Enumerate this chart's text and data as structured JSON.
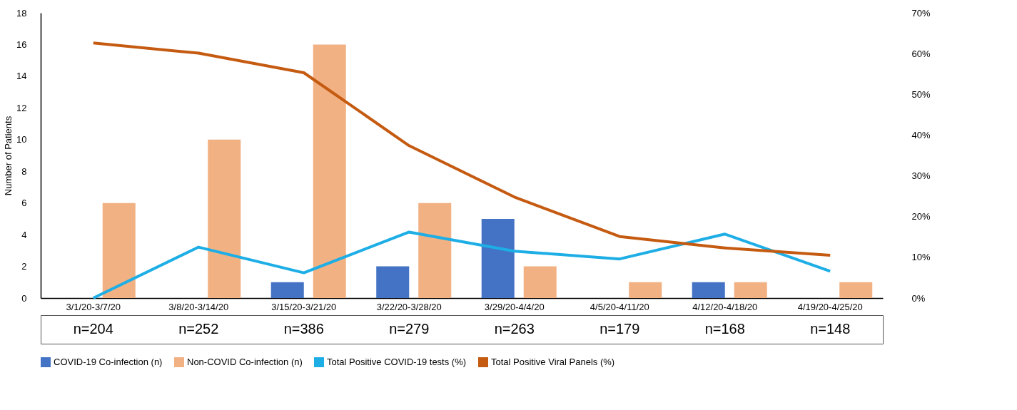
{
  "chart_data": {
    "type": "bar",
    "ylabel": "Number of Patients",
    "categories": [
      "3/1/20-3/7/20",
      "3/8/20-3/14/20",
      "3/15/20-3/21/20",
      "3/22/20-3/28/20",
      "3/29/20-4/4/20",
      "4/5/20-4/11/20",
      "4/12/20-4/18/20",
      "4/19/20-4/25/20"
    ],
    "series": [
      {
        "name": "COVID-19 Co-infection (n)",
        "color": "#4472c4",
        "values": [
          0,
          0,
          1,
          2,
          5,
          0,
          1,
          0
        ]
      },
      {
        "name": "Non-COVID Co-infection (n)",
        "color": "#f1b183",
        "values": [
          6,
          10,
          16,
          6,
          2,
          1,
          1,
          1
        ]
      },
      {
        "name": "Total Positive COVID-19 tests (%)",
        "type": "line",
        "axis": "y2",
        "color": "#1eaee6",
        "values": [
          0,
          12.5,
          6.2,
          16.2,
          11.5,
          9.6,
          15.7,
          6.6
        ]
      },
      {
        "name": "Total Positive Viral Panels (%)",
        "type": "line",
        "axis": "y2",
        "color": "#c55a11",
        "values": [
          62.6,
          60.1,
          55.3,
          37.4,
          24.8,
          15.1,
          12.3,
          10.5
        ]
      }
    ],
    "ylim": [
      0,
      18
    ],
    "yticks": [
      0,
      2,
      4,
      6,
      8,
      10,
      12,
      14,
      16,
      18
    ],
    "y2lim": [
      0,
      70
    ],
    "y2ticks": [
      {
        "value": 0,
        "label": "0%"
      },
      {
        "value": 10,
        "label": "10%"
      },
      {
        "value": 20,
        "label": "20%"
      },
      {
        "value": 30,
        "label": "30%"
      },
      {
        "value": 40,
        "label": "40%"
      },
      {
        "value": 50,
        "label": "50%"
      },
      {
        "value": 60,
        "label": "60%"
      },
      {
        "value": 70,
        "label": "70%"
      }
    ],
    "annotations": [
      "n=204",
      "n=252",
      "n=386",
      "n=279",
      "n=263",
      "n=179",
      "n=168",
      "n=148"
    ],
    "grid": false,
    "legend": "bottom"
  }
}
